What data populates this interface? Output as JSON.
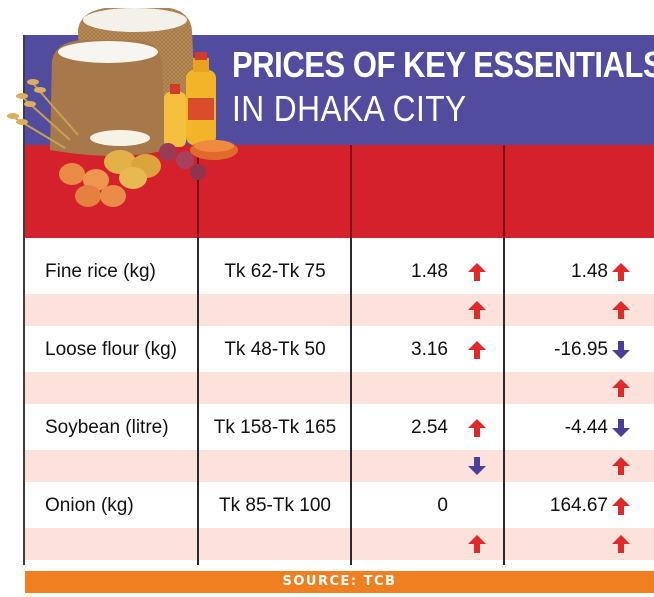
{
  "header": {
    "title_line1": "PRICES OF KEY ESSENTIALS",
    "title_line2": "IN DHAKA CITY"
  },
  "source": "SOURCE: TCB",
  "colors": {
    "title_band": "#524c9e",
    "header_band": "#d4212c",
    "alt_row": "#fde2dc",
    "source_bar": "#f07f21",
    "arrow_up": "#e02a2a",
    "arrow_down": "#4a3f9a"
  },
  "chart_data": {
    "type": "table",
    "rows": [
      {
        "item": "Fine rice (kg)",
        "price_range": "Tk 62-Tk 75",
        "change_1": "1.48",
        "change_1_dir": "up",
        "change_2": "1.48",
        "change_2_dir": "up",
        "sub_dir_1": "up",
        "sub_dir_2": "up"
      },
      {
        "item": "Loose flour (kg)",
        "price_range": "Tk 48-Tk 50",
        "change_1": "3.16",
        "change_1_dir": "up",
        "change_2": "-16.95",
        "change_2_dir": "down",
        "sub_dir_1": "",
        "sub_dir_2": "up"
      },
      {
        "item": "Soybean (litre)",
        "price_range": "Tk 158-Tk 165",
        "change_1": "2.54",
        "change_1_dir": "up",
        "change_2": "-4.44",
        "change_2_dir": "down",
        "sub_dir_1": "down",
        "sub_dir_2": "up"
      },
      {
        "item": "Onion (kg)",
        "price_range": "Tk 85-Tk 100",
        "change_1": "0",
        "change_1_dir": "",
        "change_2": "164.67",
        "change_2_dir": "up",
        "sub_dir_1": "up",
        "sub_dir_2": "up"
      }
    ]
  }
}
